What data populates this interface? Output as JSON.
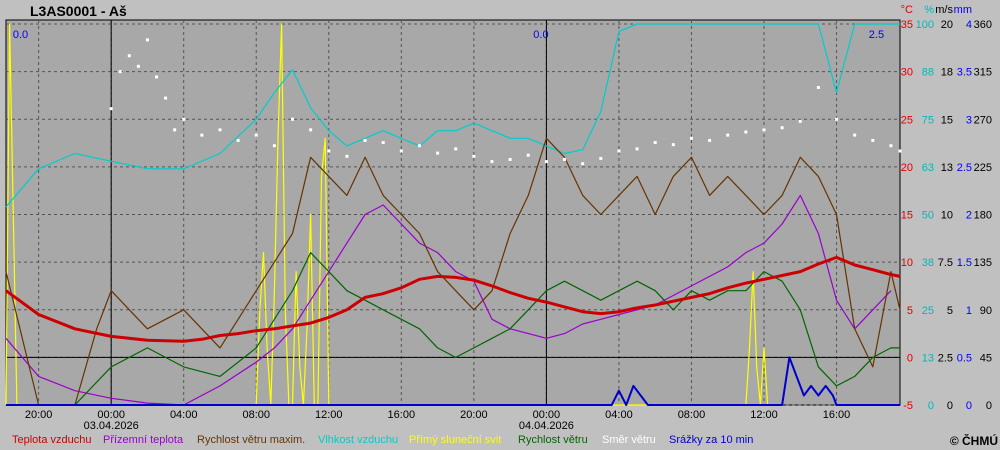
{
  "chart_data": {
    "type": "line",
    "title": "L3AS0001 - Aš",
    "copyright": "© ČHMÚ",
    "x_ticks": [
      "20:00",
      "00:00",
      "04:00",
      "08:00",
      "12:00",
      "16:00",
      "20:00",
      "00:00",
      "04:00",
      "08:00",
      "12:00",
      "16:00"
    ],
    "x_ticks_hours": [
      0,
      4,
      8,
      12,
      16,
      20,
      24,
      28,
      32,
      36,
      40,
      44
    ],
    "x_range_hours": [
      -1.8,
      47.5
    ],
    "date_labels": [
      {
        "hour": 4,
        "text": "03.04.2026"
      },
      {
        "hour": 28,
        "text": "04.04.2026"
      }
    ],
    "axes": {
      "temp_c": {
        "unit": "°C",
        "ticks": [
          "-5",
          "0",
          "5",
          "10",
          "15",
          "20",
          "25",
          "30",
          "35"
        ],
        "range": [
          -5,
          35
        ],
        "color": "#e00000"
      },
      "humidity_pct": {
        "unit": "%",
        "ticks": [
          "0",
          "13",
          "25",
          "38",
          "50",
          "63",
          "75",
          "88",
          "100"
        ],
        "range": [
          0,
          100
        ],
        "color": "#00c0c0"
      },
      "wind_ms": {
        "unit": "m/s",
        "ticks": [
          "0",
          "2.5",
          "5",
          "7.5",
          "10",
          "13",
          "15",
          "18",
          "20"
        ],
        "range": [
          0,
          20
        ],
        "color": "#000000"
      },
      "precip_mm": {
        "unit": "mm",
        "ticks": [
          "0",
          "0.5",
          "1",
          "1.5",
          "2",
          "2.5",
          "3",
          "3.5",
          "4"
        ],
        "range": [
          0,
          4
        ],
        "color": "#0000ff"
      },
      "direction_deg": {
        "ticks": [
          "0",
          "45",
          "90",
          "135",
          "180",
          "225",
          "270",
          "315",
          "360"
        ],
        "range": [
          0,
          360
        ],
        "color": "#000000"
      }
    },
    "markers": [
      {
        "hour": -1,
        "text": "0.0"
      },
      {
        "hour": 27.7,
        "text": "0.0"
      },
      {
        "hour": 46.2,
        "text": "2.5"
      }
    ],
    "series": [
      {
        "name": "Teplota vzduchu",
        "color": "#cc0000",
        "axis": "temp_c",
        "x": [
          -1.8,
          0,
          2,
          4,
          6,
          8,
          9,
          10,
          11,
          12,
          13,
          14,
          15,
          16,
          17,
          18,
          19,
          20,
          21,
          22,
          23,
          24,
          25,
          26,
          27,
          28,
          29,
          30,
          31,
          32,
          33,
          34,
          35,
          36,
          37,
          38,
          39,
          40,
          41,
          42,
          43,
          44,
          45,
          46,
          47,
          47.5
        ],
        "values": [
          7,
          4.5,
          3,
          2.2,
          1.8,
          1.7,
          1.9,
          2.3,
          2.5,
          2.8,
          3,
          3.3,
          3.6,
          4.2,
          5,
          6.3,
          6.7,
          7.3,
          8.2,
          8.5,
          8.4,
          8.1,
          7.5,
          6.8,
          6.2,
          5.8,
          5.3,
          4.8,
          4.6,
          4.8,
          5.2,
          5.5,
          5.9,
          6.3,
          6.7,
          7.3,
          7.8,
          8.2,
          8.6,
          9,
          9.8,
          10.5,
          9.7,
          9.2,
          8.7,
          8.5
        ]
      },
      {
        "name": "Přízemní teplota",
        "color": "#9900cc",
        "axis": "temp_c",
        "x": [
          -1.8,
          0,
          2,
          4,
          6,
          8,
          10,
          12,
          13,
          14,
          15,
          16,
          17,
          18,
          19,
          20,
          21,
          22,
          23,
          24,
          25,
          26,
          27,
          28,
          29,
          30,
          31,
          32,
          33,
          34,
          35,
          36,
          37,
          38,
          39,
          40,
          41,
          42,
          43,
          44,
          45,
          46,
          47
        ],
        "values": [
          2,
          -2,
          -3.5,
          -4.3,
          -4.8,
          -5,
          -3,
          -0.5,
          1,
          3,
          6,
          9,
          12,
          15,
          16,
          14,
          12,
          11,
          9,
          8,
          4,
          3,
          2.5,
          2,
          2.5,
          3.5,
          4,
          4.5,
          5,
          5.5,
          6.5,
          7.5,
          8.5,
          9.5,
          11,
          12,
          14,
          17,
          13,
          6,
          3,
          5,
          7
        ]
      },
      {
        "name": "Rychlost větru maxim.",
        "color": "#663300",
        "axis": "wind_ms",
        "x": [
          -1.8,
          0,
          2,
          3.2,
          4,
          6,
          8,
          10,
          12,
          14,
          15,
          16,
          17,
          18,
          19,
          20,
          21,
          22,
          23,
          24,
          25,
          26,
          27,
          28,
          29,
          30,
          31,
          32,
          33,
          34,
          35,
          36,
          37,
          38,
          39,
          40,
          41,
          42,
          43,
          44,
          45,
          46,
          47,
          47.5
        ],
        "values": [
          7,
          0,
          0,
          4,
          6,
          4,
          5,
          3,
          6,
          9,
          13,
          12,
          11,
          13,
          11,
          10,
          9,
          7,
          6,
          5,
          6,
          9,
          11,
          14,
          13,
          11,
          10,
          11,
          12,
          10,
          12,
          13,
          11,
          12,
          11,
          10,
          11,
          13,
          12,
          10,
          4,
          2,
          7,
          5
        ]
      },
      {
        "name": "Vlhkost vzduchu",
        "color": "#00cccc",
        "axis": "humidity_pct",
        "x": [
          -1.8,
          0,
          2,
          4,
          6,
          8,
          10,
          12,
          13,
          14,
          15,
          16,
          17,
          18,
          19,
          20,
          21,
          22,
          23,
          24,
          25,
          26,
          27,
          28,
          29,
          30,
          31,
          32,
          33,
          34,
          35,
          36,
          37,
          38,
          39,
          40,
          41,
          42,
          43,
          44,
          45,
          46,
          47,
          47.5
        ],
        "values": [
          52,
          62,
          66,
          64,
          62,
          62,
          66,
          75,
          82,
          88,
          78,
          72,
          68,
          70,
          72,
          70,
          68,
          72,
          72,
          74,
          72,
          70,
          70,
          68,
          66,
          67,
          77,
          98,
          100,
          100,
          100,
          100,
          100,
          100,
          100,
          100,
          100,
          100,
          100,
          82,
          100,
          100,
          100,
          100
        ]
      },
      {
        "name": "Přímý sluneční svit",
        "color": "#ffff00",
        "axis": "wind_ms",
        "x": [
          -1.8,
          -1.6,
          -1.4,
          -1.2,
          -1.0,
          -0.8,
          12,
          12.2,
          12.4,
          12.6,
          12.8,
          13,
          13.2,
          13.4,
          13.6,
          13.8,
          14,
          14.2,
          14.4,
          14.6,
          14.8,
          15,
          15.2,
          15.4,
          15.6,
          15.8,
          16,
          16.2,
          16.4,
          39,
          39.2,
          39.4,
          39.6,
          39.8,
          40,
          40.2
        ],
        "values": [
          0,
          20,
          10,
          0,
          0,
          0,
          0,
          5,
          8,
          3,
          0,
          6,
          14,
          20,
          5,
          0,
          0,
          7,
          2,
          0,
          4,
          10,
          0,
          0,
          12,
          14,
          0,
          0,
          0,
          0,
          3,
          7,
          2,
          0,
          3,
          0
        ]
      },
      {
        "name": "Rychlost větru",
        "color": "#006600",
        "axis": "wind_ms",
        "x": [
          -1.8,
          0,
          2,
          4,
          6,
          8,
          10,
          12,
          14,
          15,
          16,
          17,
          18,
          19,
          20,
          21,
          22,
          23,
          24,
          25,
          26,
          27,
          28,
          29,
          30,
          31,
          32,
          33,
          34,
          35,
          36,
          37,
          38,
          39,
          40,
          41,
          42,
          43,
          44,
          45,
          46,
          47,
          47.5
        ],
        "values": [
          0,
          0,
          0,
          2,
          3,
          2,
          1.5,
          3,
          6,
          8,
          7,
          6,
          5.5,
          5,
          4.5,
          4,
          3,
          2.5,
          3,
          3.5,
          4,
          5,
          6,
          6.5,
          6,
          5.5,
          6,
          6.5,
          6,
          5,
          6,
          5.5,
          6,
          6,
          7,
          6.5,
          5,
          2,
          1,
          1.5,
          2.5,
          3,
          3
        ]
      },
      {
        "name": "Směr větru",
        "color": "#ffffff",
        "axis": "direction_deg",
        "x": [
          4,
          4.5,
          5,
          5.5,
          6,
          6.5,
          7,
          7.5,
          8,
          9,
          10,
          11,
          12,
          13,
          14,
          15,
          16,
          17,
          18,
          19,
          20,
          21,
          22,
          23,
          24,
          25,
          26,
          27,
          28,
          29,
          30,
          31,
          32,
          33,
          34,
          35,
          36,
          37,
          38,
          39,
          40,
          41,
          42,
          43,
          44,
          45,
          46,
          47,
          47.5
        ],
        "values": [
          280,
          315,
          330,
          320,
          345,
          310,
          290,
          260,
          270,
          255,
          260,
          250,
          255,
          245,
          270,
          260,
          240,
          235,
          250,
          248,
          240,
          245,
          238,
          242,
          235,
          230,
          232,
          236,
          230,
          232,
          228,
          233,
          240,
          242,
          248,
          246,
          252,
          250,
          255,
          258,
          260,
          262,
          268,
          300,
          270,
          255,
          250,
          245,
          240
        ]
      },
      {
        "name": "Srážky za 10 min",
        "color": "#0000cc",
        "axis": "precip_mm",
        "x": [
          -1.8,
          31.6,
          32,
          32.4,
          32.8,
          33.2,
          33.6,
          41,
          41.4,
          41.8,
          42.2,
          42.6,
          43,
          43.4,
          43.8,
          44,
          47.5
        ],
        "values": [
          0,
          0,
          0.15,
          0,
          0.2,
          0.1,
          0,
          0,
          0.5,
          0.3,
          0.1,
          0.2,
          0.1,
          0.2,
          0.1,
          0,
          0
        ]
      }
    ]
  }
}
